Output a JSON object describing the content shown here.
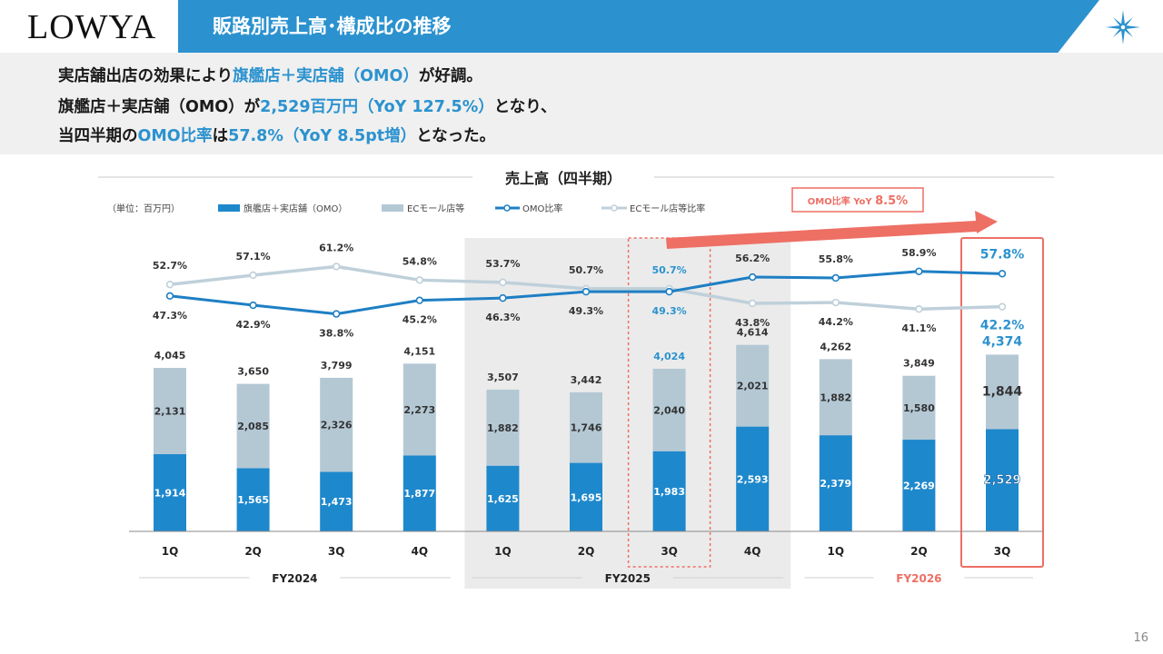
{
  "header": {
    "logo": "LOWYA",
    "title": "販路別売上高･構成比の推移",
    "brand_color": "#2b92cf"
  },
  "summary": {
    "line1": {
      "a": "実店舗出店の効果により",
      "b": "旗艦店＋実店舗（OMO）",
      "c": "が好調。"
    },
    "line2": {
      "a": "旗艦店＋実店舗（OMO）が",
      "b": "2,529百万円（YoY 127.5%）",
      "c": "となり、"
    },
    "line3": {
      "a": "当四半期の",
      "b": "OMO比率",
      "c": "は",
      "d": "57.8%（YoY 8.5pt増）",
      "e": "となった。"
    }
  },
  "page_number": "16",
  "chart_data": {
    "type": "bar",
    "title": "売上高（四半期）",
    "unit_label": "（単位：百万円）",
    "callout": {
      "label": "OMO比率 YoY",
      "value": "8.5%"
    },
    "categories": [
      "1Q",
      "2Q",
      "3Q",
      "4Q",
      "1Q",
      "2Q",
      "3Q",
      "4Q",
      "1Q",
      "2Q",
      "3Q"
    ],
    "fiscal_years": [
      {
        "label": "FY2024",
        "from": 0,
        "to": 3
      },
      {
        "label": "FY2025",
        "from": 4,
        "to": 7
      },
      {
        "label": "FY2026",
        "from": 8,
        "to": 10
      }
    ],
    "totals": [
      4045,
      3650,
      3799,
      4151,
      3507,
      3442,
      4024,
      4614,
      4262,
      3849,
      4374
    ],
    "series": [
      {
        "name": "旗艦店＋実店舗（OMO）",
        "kind": "bar",
        "color": "#1e88cc",
        "values": [
          1914,
          1565,
          1473,
          1877,
          1625,
          1695,
          1983,
          2593,
          2379,
          2269,
          2529
        ]
      },
      {
        "name": "ECモール店等",
        "kind": "bar",
        "color": "#b4c8d4",
        "values": [
          2131,
          2085,
          2326,
          2273,
          1882,
          1746,
          2040,
          2021,
          1882,
          1580,
          1844
        ]
      },
      {
        "name": "OMO比率",
        "kind": "line",
        "color": "#1e7fc4",
        "values": [
          47.3,
          42.9,
          38.8,
          45.2,
          46.3,
          49.3,
          49.3,
          56.2,
          55.8,
          58.9,
          57.8
        ]
      },
      {
        "name": "ECモール店等比率",
        "kind": "line",
        "color": "#bfd0da",
        "values": [
          52.7,
          57.1,
          61.2,
          54.8,
          53.7,
          50.7,
          50.7,
          43.8,
          44.2,
          41.1,
          42.2
        ]
      }
    ],
    "colors": {
      "highlight": "#2b92cf",
      "accent_red": "#ee6f64",
      "fy2026_label": "#ee6f64",
      "shade": "#ebebeb"
    }
  }
}
